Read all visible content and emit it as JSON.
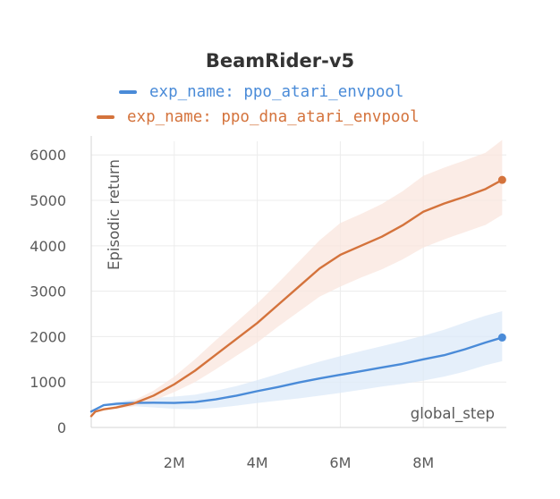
{
  "chart_data": {
    "type": "line",
    "title": "BeamRider-v5",
    "xlabel": "global_step",
    "ylabel": "Episodic return",
    "xlim": [
      0,
      10000000
    ],
    "ylim": [
      0,
      6300
    ],
    "x_ticks": [
      2000000,
      4000000,
      6000000,
      8000000
    ],
    "x_tick_labels": [
      "2M",
      "4M",
      "6M",
      "8M"
    ],
    "y_ticks": [
      0,
      1000,
      2000,
      3000,
      4000,
      5000,
      6000
    ],
    "y_tick_labels": [
      "0",
      "1000",
      "2000",
      "3000",
      "4000",
      "5000",
      "6000"
    ],
    "grid": true,
    "legend_position": "top-center",
    "series": [
      {
        "name": "exp_name: ppo_atari_envpool",
        "color": "#4a8bd8",
        "band_color": "#dce9f8",
        "x": [
          0,
          300000,
          600000,
          1000000,
          1500000,
          2000000,
          2500000,
          3000000,
          3500000,
          4000000,
          4500000,
          5000000,
          5500000,
          6000000,
          6500000,
          7000000,
          7500000,
          8000000,
          8500000,
          9000000,
          9500000,
          9900000
        ],
        "values": [
          350,
          490,
          520,
          540,
          545,
          540,
          560,
          620,
          700,
          800,
          890,
          990,
          1080,
          1160,
          1240,
          1320,
          1400,
          1500,
          1590,
          1720,
          1870,
          1980
        ],
        "lower": [
          350,
          470,
          480,
          470,
          440,
          410,
          400,
          430,
          480,
          540,
          590,
          640,
          700,
          760,
          830,
          900,
          960,
          1030,
          1120,
          1230,
          1370,
          1460
        ],
        "upper": [
          350,
          510,
          560,
          610,
          650,
          680,
          720,
          810,
          910,
          1040,
          1180,
          1320,
          1450,
          1570,
          1680,
          1790,
          1900,
          2020,
          2150,
          2310,
          2460,
          2560
        ]
      },
      {
        "name": "exp_name: ppo_dna_atari_envpool",
        "color": "#d4733c",
        "band_color": "#fae6de",
        "x": [
          0,
          100000,
          300000,
          600000,
          1000000,
          1500000,
          2000000,
          2500000,
          3000000,
          3500000,
          4000000,
          4500000,
          5000000,
          5500000,
          6000000,
          6500000,
          7000000,
          7500000,
          8000000,
          8500000,
          9000000,
          9500000,
          9900000
        ],
        "values": [
          250,
          350,
          400,
          440,
          520,
          700,
          950,
          1250,
          1600,
          1950,
          2300,
          2700,
          3100,
          3500,
          3800,
          4000,
          4200,
          4450,
          4750,
          4930,
          5080,
          5250,
          5450
        ],
        "lower": [
          250,
          340,
          380,
          410,
          460,
          590,
          780,
          1000,
          1280,
          1580,
          1870,
          2220,
          2550,
          2880,
          3100,
          3300,
          3480,
          3700,
          3960,
          4140,
          4300,
          4460,
          4680
        ],
        "upper": [
          250,
          360,
          420,
          470,
          580,
          810,
          1120,
          1500,
          1920,
          2320,
          2730,
          3180,
          3650,
          4120,
          4500,
          4700,
          4920,
          5200,
          5540,
          5720,
          5880,
          6050,
          6330
        ]
      }
    ]
  }
}
